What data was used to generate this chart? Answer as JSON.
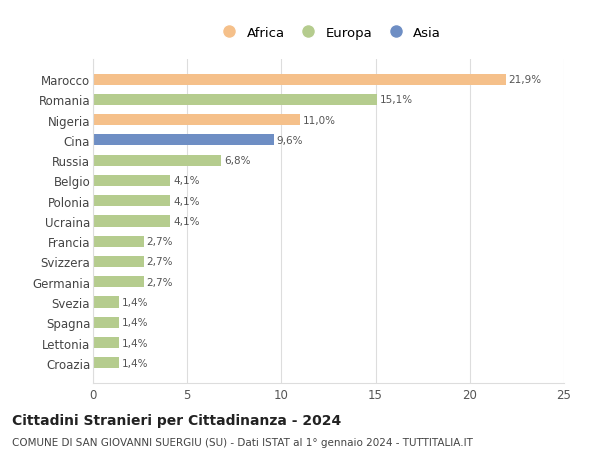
{
  "categories": [
    "Marocco",
    "Romania",
    "Nigeria",
    "Cina",
    "Russia",
    "Belgio",
    "Polonia",
    "Ucraina",
    "Francia",
    "Svizzera",
    "Germania",
    "Svezia",
    "Spagna",
    "Lettonia",
    "Croazia"
  ],
  "values": [
    21.9,
    15.1,
    11.0,
    9.6,
    6.8,
    4.1,
    4.1,
    4.1,
    2.7,
    2.7,
    2.7,
    1.4,
    1.4,
    1.4,
    1.4
  ],
  "labels": [
    "21,9%",
    "15,1%",
    "11,0%",
    "9,6%",
    "6,8%",
    "4,1%",
    "4,1%",
    "4,1%",
    "2,7%",
    "2,7%",
    "2,7%",
    "1,4%",
    "1,4%",
    "1,4%",
    "1,4%"
  ],
  "colors": [
    "#f5c08a",
    "#b5cc8e",
    "#f5c08a",
    "#6e8ec4",
    "#b5cc8e",
    "#b5cc8e",
    "#b5cc8e",
    "#b5cc8e",
    "#b5cc8e",
    "#b5cc8e",
    "#b5cc8e",
    "#b5cc8e",
    "#b5cc8e",
    "#b5cc8e",
    "#b5cc8e"
  ],
  "legend_labels": [
    "Africa",
    "Europa",
    "Asia"
  ],
  "legend_colors": [
    "#f5c08a",
    "#b5cc8e",
    "#6e8ec4"
  ],
  "xlim": [
    0,
    25
  ],
  "xticks": [
    0,
    5,
    10,
    15,
    20,
    25
  ],
  "title": "Cittadini Stranieri per Cittadinanza - 2024",
  "subtitle": "COMUNE DI SAN GIOVANNI SUERGIU (SU) - Dati ISTAT al 1° gennaio 2024 - TUTTITALIA.IT",
  "bg_color": "#ffffff",
  "grid_color": "#dddddd",
  "bar_height": 0.55,
  "label_fontsize": 7.5,
  "ytick_fontsize": 8.5,
  "xtick_fontsize": 8.5,
  "title_fontsize": 10,
  "subtitle_fontsize": 7.5
}
